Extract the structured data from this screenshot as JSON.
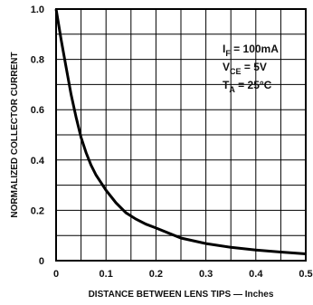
{
  "chart_data": {
    "type": "line",
    "xlabel": "DISTANCE BETWEEN LENS TIPS — Inches",
    "ylabel": "NORMALIZED COLLECTOR CURRENT",
    "xlim": [
      0,
      0.5
    ],
    "ylim": [
      0,
      1.0
    ],
    "x_ticks": [
      "0",
      "0.1",
      "0.2",
      "0.3",
      "0.4",
      "0.5"
    ],
    "y_ticks": [
      "0",
      "0.2",
      "0.4",
      "0.6",
      "0.8",
      "1.0"
    ],
    "x_grid_step": 0.05,
    "y_grid_step": 0.1,
    "grid": true,
    "annotations": [
      {
        "main": "I",
        "sub": "F",
        "rest": " = 100mA"
      },
      {
        "main": "V",
        "sub": "CE",
        "rest": " = 5V"
      },
      {
        "main": "T",
        "sub": "A",
        "rest": " = 25°C"
      }
    ],
    "series": [
      {
        "x": [
          0,
          0.01,
          0.02,
          0.03,
          0.04,
          0.05,
          0.06,
          0.07,
          0.08,
          0.09,
          0.1,
          0.12,
          0.14,
          0.16,
          0.18,
          0.2,
          0.25,
          0.3,
          0.35,
          0.4,
          0.45,
          0.5
        ],
        "values": [
          1.0,
          0.88,
          0.77,
          0.66,
          0.57,
          0.49,
          0.43,
          0.38,
          0.34,
          0.31,
          0.28,
          0.23,
          0.19,
          0.165,
          0.145,
          0.13,
          0.09,
          0.068,
          0.053,
          0.042,
          0.034,
          0.027
        ]
      }
    ]
  }
}
